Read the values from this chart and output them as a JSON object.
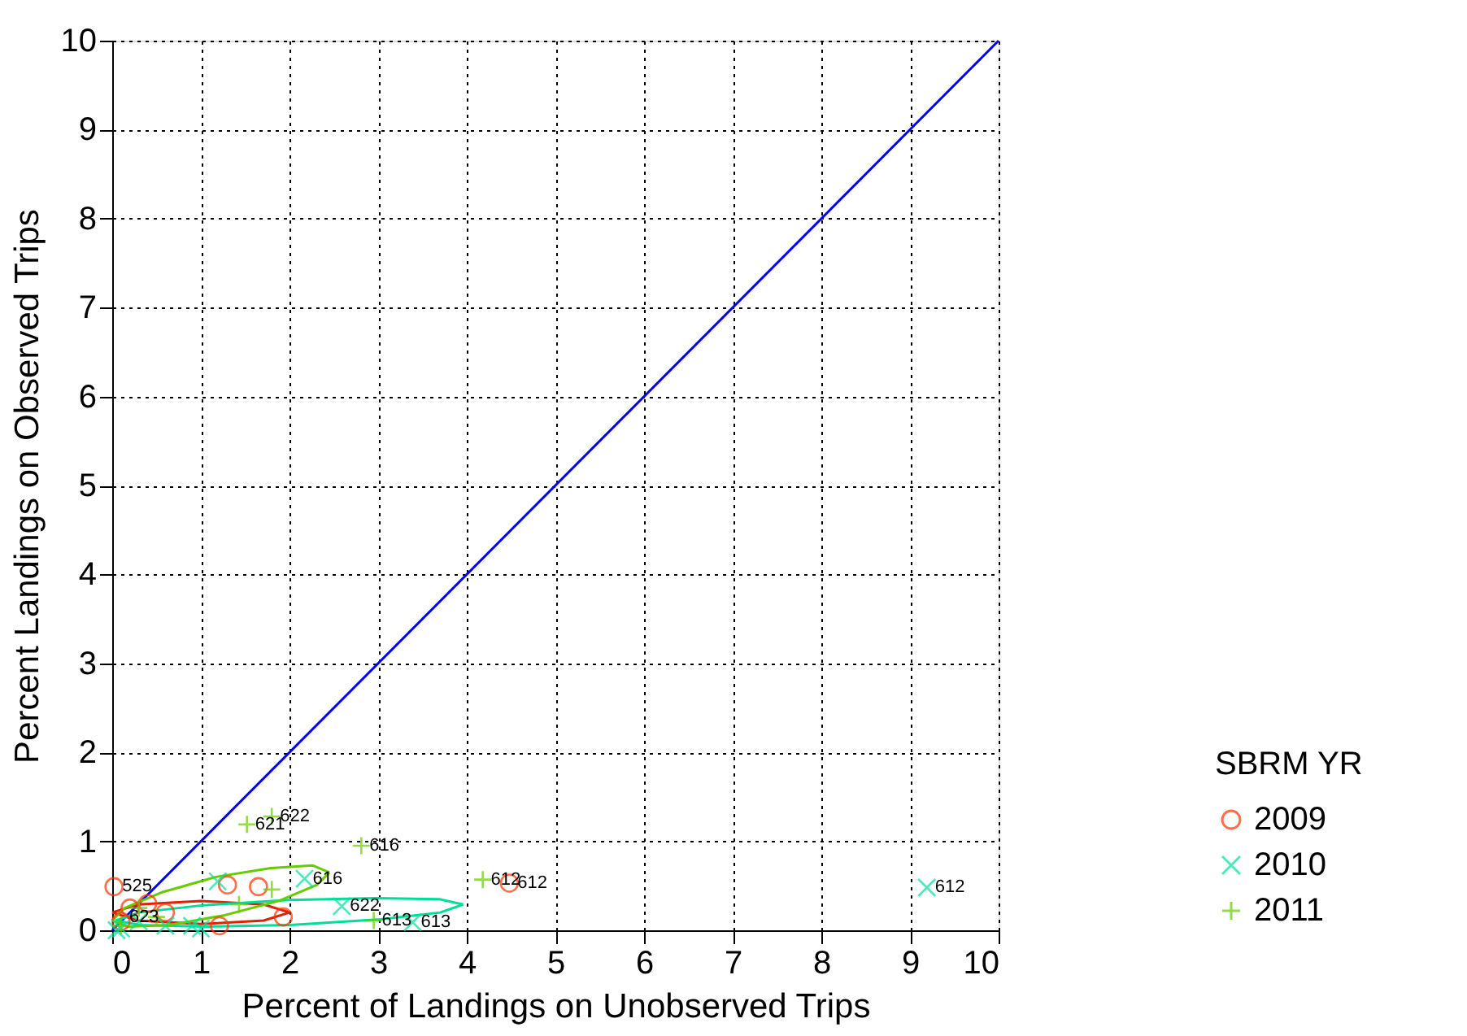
{
  "chart_data": {
    "type": "scatter",
    "xlabel": "Percent  of Landings on Unobserved Trips",
    "ylabel": "Percent Landings on Observed Trips",
    "legend_title": "SBRM YR",
    "xlim": [
      0,
      10
    ],
    "ylim": [
      0,
      10
    ],
    "xticks": [
      0,
      1,
      2,
      3,
      4,
      5,
      6,
      7,
      8,
      9,
      10
    ],
    "yticks": [
      0,
      1,
      2,
      3,
      4,
      5,
      6,
      7,
      8,
      9,
      10
    ],
    "grid": true,
    "legend": "right",
    "series": [
      {
        "type": "line",
        "color": "#0000ff",
        "line_style": "solid",
        "marker": "none",
        "x": [
          0,
          10
        ],
        "values": [
          0,
          10
        ]
      },
      {
        "type": "line",
        "color": "#dd2200",
        "x": [
          0.0,
          0.29,
          1.0,
          1.71,
          2.0
        ],
        "values": [
          0.2,
          0.29,
          0.33,
          0.29,
          0.2
        ]
      },
      {
        "type": "line",
        "color": "#dd2200",
        "x": [
          0.0,
          0.29,
          1.0,
          1.71,
          2.0
        ],
        "values": [
          0.2,
          0.11,
          0.07,
          0.11,
          0.2
        ]
      },
      {
        "type": "line",
        "color": "#00dd99",
        "x": [
          0.04,
          0.3,
          1.01,
          1.99,
          2.97,
          3.69,
          3.96
        ],
        "values": [
          0.11,
          0.2,
          0.28,
          0.34,
          0.36,
          0.35,
          0.29
        ]
      },
      {
        "type": "line",
        "color": "#00dd99",
        "x": [
          0.04,
          0.31,
          1.03,
          2.01,
          2.99,
          3.7,
          3.96
        ],
        "values": [
          0.11,
          0.06,
          0.04,
          0.06,
          0.12,
          0.2,
          0.29
        ]
      },
      {
        "type": "line",
        "color": "#66cc00",
        "x": [
          0.0,
          0.14,
          0.57,
          1.17,
          1.79,
          2.26,
          2.45
        ],
        "values": [
          0.11,
          0.25,
          0.43,
          0.6,
          0.7,
          0.73,
          0.65
        ]
      },
      {
        "type": "line",
        "color": "#66cc00",
        "x": [
          0.0,
          0.18,
          0.65,
          1.27,
          1.88,
          2.31,
          2.45
        ],
        "values": [
          0.11,
          0.04,
          0.06,
          0.17,
          0.33,
          0.51,
          0.65
        ]
      },
      {
        "name": "2009",
        "color": "#ff3300",
        "marker": "circle",
        "x": [
          0.02,
          4.48,
          1.3,
          1.21,
          1.65,
          1.93,
          0.2,
          0.4,
          0.1,
          0.6
        ],
        "values": [
          0.49,
          0.53,
          0.51,
          0.05,
          0.49,
          0.15,
          0.25,
          0.3,
          0.1,
          0.2
        ]
      },
      {
        "name": "2010",
        "color": "#00e0a0",
        "marker": "x",
        "x": [
          9.19,
          2.17,
          1.19,
          2.59,
          3.39,
          1.0,
          0.9,
          0.6,
          0.1,
          0.3,
          0.05
        ],
        "values": [
          0.48,
          0.58,
          0.55,
          0.27,
          0.09,
          0.02,
          0.05,
          0.05,
          0.02,
          0.1,
          0.0
        ]
      },
      {
        "name": "2011",
        "color": "#66cc00",
        "marker": "cross",
        "x": [
          1.8,
          1.52,
          2.81,
          4.18,
          1.43,
          2.95,
          1.8,
          0.3,
          0.5,
          0.1
        ],
        "values": [
          1.28,
          1.19,
          0.95,
          0.57,
          0.29,
          0.11,
          0.46,
          0.25,
          0.15,
          0.05
        ]
      }
    ],
    "annotations": [
      {
        "text": "525",
        "x": 0.02,
        "y": 0.49
      },
      {
        "text": "612",
        "x": 4.48,
        "y": 0.53
      },
      {
        "text": "612",
        "x": 9.19,
        "y": 0.48
      },
      {
        "text": "612",
        "x": 4.18,
        "y": 0.57
      },
      {
        "text": "622",
        "x": 1.8,
        "y": 1.28
      },
      {
        "text": "621",
        "x": 1.52,
        "y": 1.19
      },
      {
        "text": "616",
        "x": 2.81,
        "y": 0.95
      },
      {
        "text": "616",
        "x": 2.17,
        "y": 0.58
      },
      {
        "text": "622",
        "x": 2.59,
        "y": 0.27
      },
      {
        "text": "613",
        "x": 2.95,
        "y": 0.11
      },
      {
        "text": "613",
        "x": 3.39,
        "y": 0.09
      },
      {
        "text": "623",
        "x": 0.1,
        "y": 0.15
      }
    ]
  }
}
